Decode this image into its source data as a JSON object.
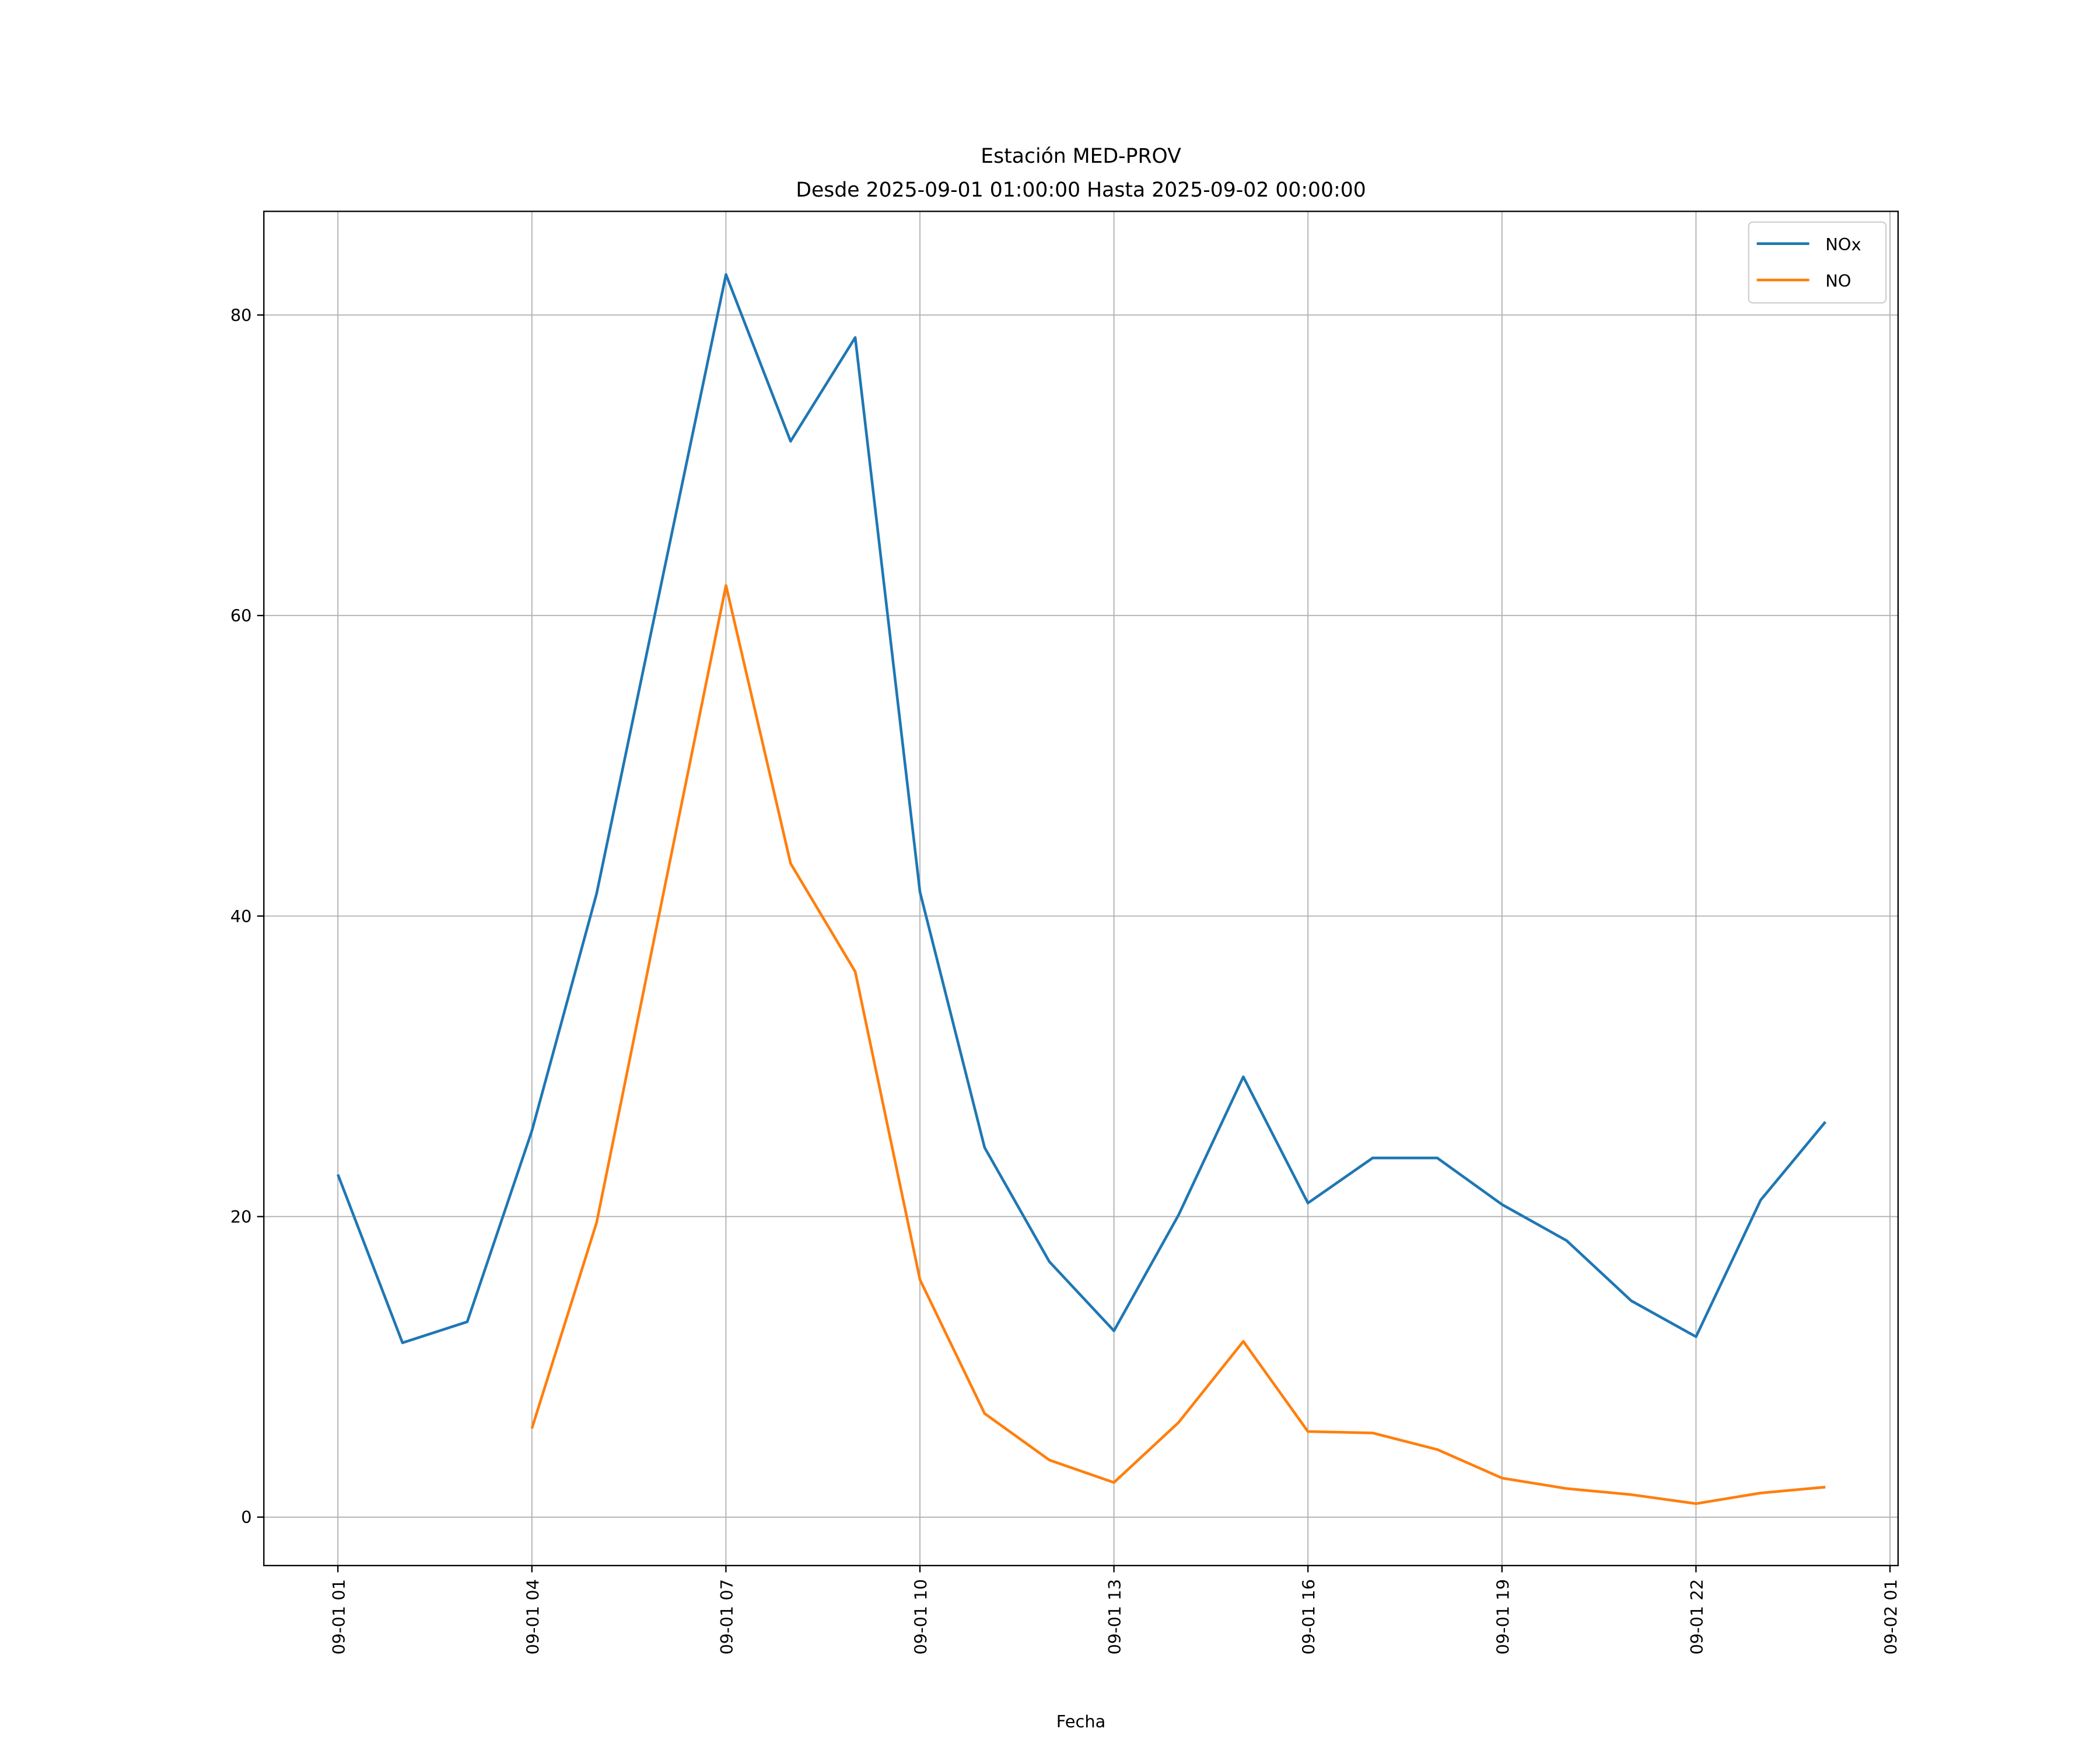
{
  "chart_data": {
    "type": "line",
    "title": "Estación MED-PROV",
    "subtitle": "Desde 2025-09-01 01:00:00 Hasta 2025-09-02 00:00:00",
    "xlabel": "Fecha",
    "ylabel": "",
    "x": [
      "09-01 01",
      "09-01 02",
      "09-01 03",
      "09-01 04",
      "09-01 05",
      "09-01 06",
      "09-01 07",
      "09-01 08",
      "09-01 09",
      "09-01 10",
      "09-01 11",
      "09-01 12",
      "09-01 13",
      "09-01 14",
      "09-01 15",
      "09-01 16",
      "09-01 17",
      "09-01 18",
      "09-01 19",
      "09-01 20",
      "09-01 21",
      "09-01 22",
      "09-01 23",
      "09-02 00"
    ],
    "x_ticks": [
      "09-01 01",
      "09-01 04",
      "09-01 07",
      "09-01 10",
      "09-01 13",
      "09-01 16",
      "09-01 19",
      "09-01 22",
      "09-02 01"
    ],
    "y_ticks": [
      0,
      20,
      40,
      60,
      80
    ],
    "ylim": [
      -3.2,
      86.8
    ],
    "xlim_hours_from_first": [
      -1.15,
      24.1
    ],
    "grid": true,
    "legend_position": "top-right",
    "series": [
      {
        "name": "NOx",
        "color": "#1f77b4",
        "values": [
          22.8,
          11.6,
          13.0,
          25.7,
          41.5,
          62.1,
          82.7,
          71.6,
          78.5,
          41.6,
          24.6,
          17.0,
          12.4,
          20.1,
          29.3,
          20.9,
          23.9,
          23.9,
          20.8,
          18.4,
          14.4,
          12.0,
          21.1,
          26.3
        ]
      },
      {
        "name": "NO",
        "color": "#ff7f0e",
        "values": [
          null,
          null,
          null,
          5.9,
          19.6,
          40.8,
          62.0,
          43.5,
          36.3,
          15.8,
          6.9,
          3.8,
          2.3,
          6.3,
          11.7,
          5.7,
          5.6,
          4.5,
          2.6,
          1.9,
          1.5,
          0.9,
          1.6,
          2.0
        ]
      }
    ]
  }
}
